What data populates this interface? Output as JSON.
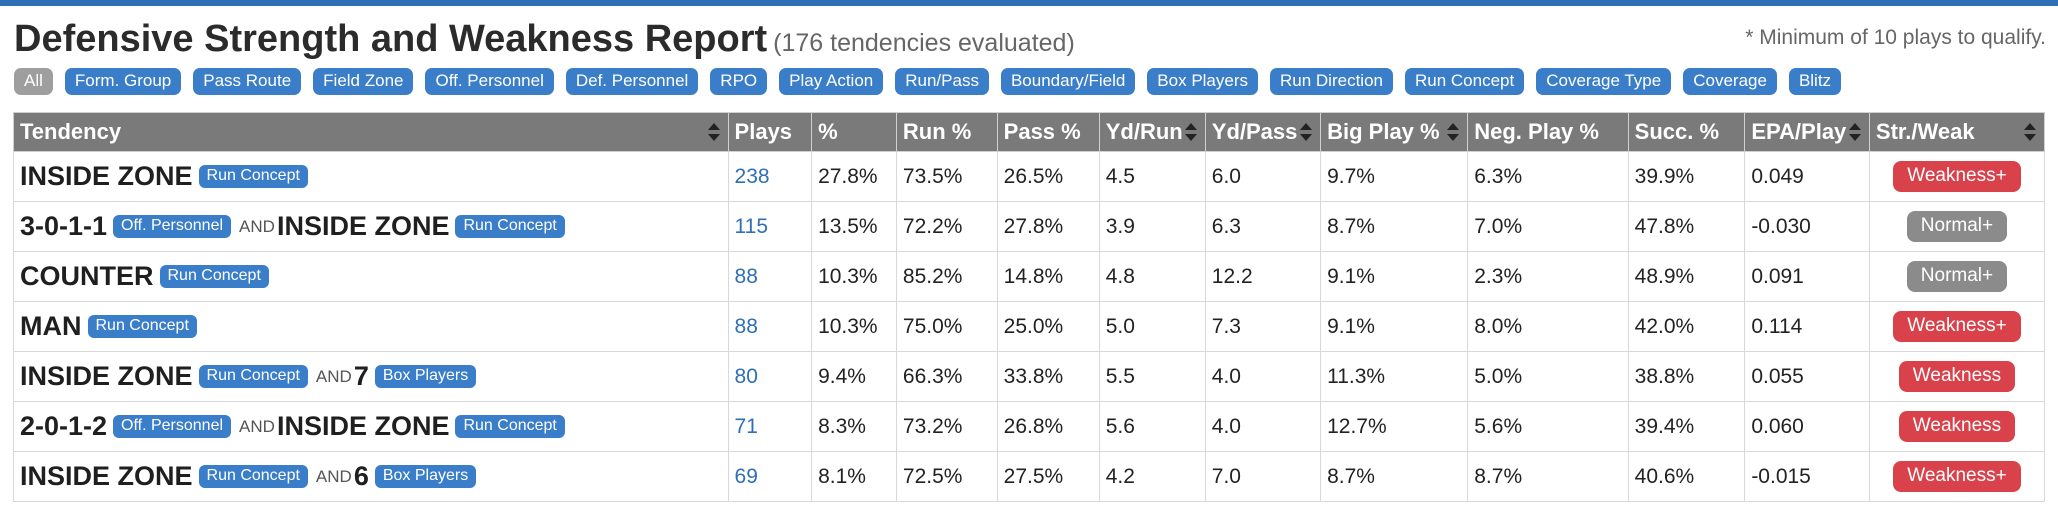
{
  "header": {
    "title": "Defensive Strength and Weakness Report",
    "subtitle": "(176 tendencies evaluated)",
    "note": "* Minimum of 10 plays to qualify."
  },
  "filters": [
    "All",
    "Form. Group",
    "Pass Route",
    "Field Zone",
    "Off. Personnel",
    "Def. Personnel",
    "RPO",
    "Play Action",
    "Run/Pass",
    "Boundary/Field",
    "Box Players",
    "Run Direction",
    "Run Concept",
    "Coverage Type",
    "Coverage",
    "Blitz"
  ],
  "table": {
    "columns": [
      "Tendency",
      "Plays",
      "%",
      "Run %",
      "Pass %",
      "Yd/Run",
      "Yd/Pass",
      "Big Play %",
      "Neg. Play %",
      "Succ. %",
      "EPA/Play",
      "Str./Weak"
    ],
    "rows": [
      {
        "tendency": [
          {
            "name": "INSIDE ZONE",
            "tag": "Run Concept"
          }
        ],
        "plays": "238",
        "pct": "27.8%",
        "run": "73.5%",
        "pass": "26.5%",
        "ydrun": "4.5",
        "ydpass": "6.0",
        "big": "9.7%",
        "neg": "6.3%",
        "succ": "39.9%",
        "epa": "0.049",
        "sw": "Weakness+",
        "sw_kind": "weak"
      },
      {
        "tendency": [
          {
            "name": "3-0-1-1",
            "tag": "Off. Personnel"
          },
          {
            "name": "INSIDE ZONE",
            "tag": "Run Concept"
          }
        ],
        "plays": "115",
        "pct": "13.5%",
        "run": "72.2%",
        "pass": "27.8%",
        "ydrun": "3.9",
        "ydpass": "6.3",
        "big": "8.7%",
        "neg": "7.0%",
        "succ": "47.8%",
        "epa": "-0.030",
        "sw": "Normal+",
        "sw_kind": "norm"
      },
      {
        "tendency": [
          {
            "name": "COUNTER",
            "tag": "Run Concept"
          }
        ],
        "plays": "88",
        "pct": "10.3%",
        "run": "85.2%",
        "pass": "14.8%",
        "ydrun": "4.8",
        "ydpass": "12.2",
        "big": "9.1%",
        "neg": "2.3%",
        "succ": "48.9%",
        "epa": "0.091",
        "sw": "Normal+",
        "sw_kind": "norm"
      },
      {
        "tendency": [
          {
            "name": "MAN",
            "tag": "Run Concept"
          }
        ],
        "plays": "88",
        "pct": "10.3%",
        "run": "75.0%",
        "pass": "25.0%",
        "ydrun": "5.0",
        "ydpass": "7.3",
        "big": "9.1%",
        "neg": "8.0%",
        "succ": "42.0%",
        "epa": "0.114",
        "sw": "Weakness+",
        "sw_kind": "weak"
      },
      {
        "tendency": [
          {
            "name": "INSIDE ZONE",
            "tag": "Run Concept"
          },
          {
            "name": "7",
            "tag": "Box Players"
          }
        ],
        "plays": "80",
        "pct": "9.4%",
        "run": "66.3%",
        "pass": "33.8%",
        "ydrun": "5.5",
        "ydpass": "4.0",
        "big": "11.3%",
        "neg": "5.0%",
        "succ": "38.8%",
        "epa": "0.055",
        "sw": "Weakness",
        "sw_kind": "weak"
      },
      {
        "tendency": [
          {
            "name": "2-0-1-2",
            "tag": "Off. Personnel"
          },
          {
            "name": "INSIDE ZONE",
            "tag": "Run Concept"
          }
        ],
        "plays": "71",
        "pct": "8.3%",
        "run": "73.2%",
        "pass": "26.8%",
        "ydrun": "5.6",
        "ydpass": "4.0",
        "big": "12.7%",
        "neg": "5.6%",
        "succ": "39.4%",
        "epa": "0.060",
        "sw": "Weakness",
        "sw_kind": "weak"
      },
      {
        "tendency": [
          {
            "name": "INSIDE ZONE",
            "tag": "Run Concept"
          },
          {
            "name": "6",
            "tag": "Box Players"
          }
        ],
        "plays": "69",
        "pct": "8.1%",
        "run": "72.5%",
        "pass": "27.5%",
        "ydrun": "4.2",
        "ydpass": "7.0",
        "big": "8.7%",
        "neg": "8.7%",
        "succ": "40.6%",
        "epa": "-0.015",
        "sw": "Weakness+",
        "sw_kind": "weak"
      }
    ],
    "and_label": "AND"
  },
  "colors": {
    "accent": "#3a7dc9",
    "weak": "#d9424b",
    "normal": "#8b8b8b",
    "header": "#7a7a7a"
  }
}
